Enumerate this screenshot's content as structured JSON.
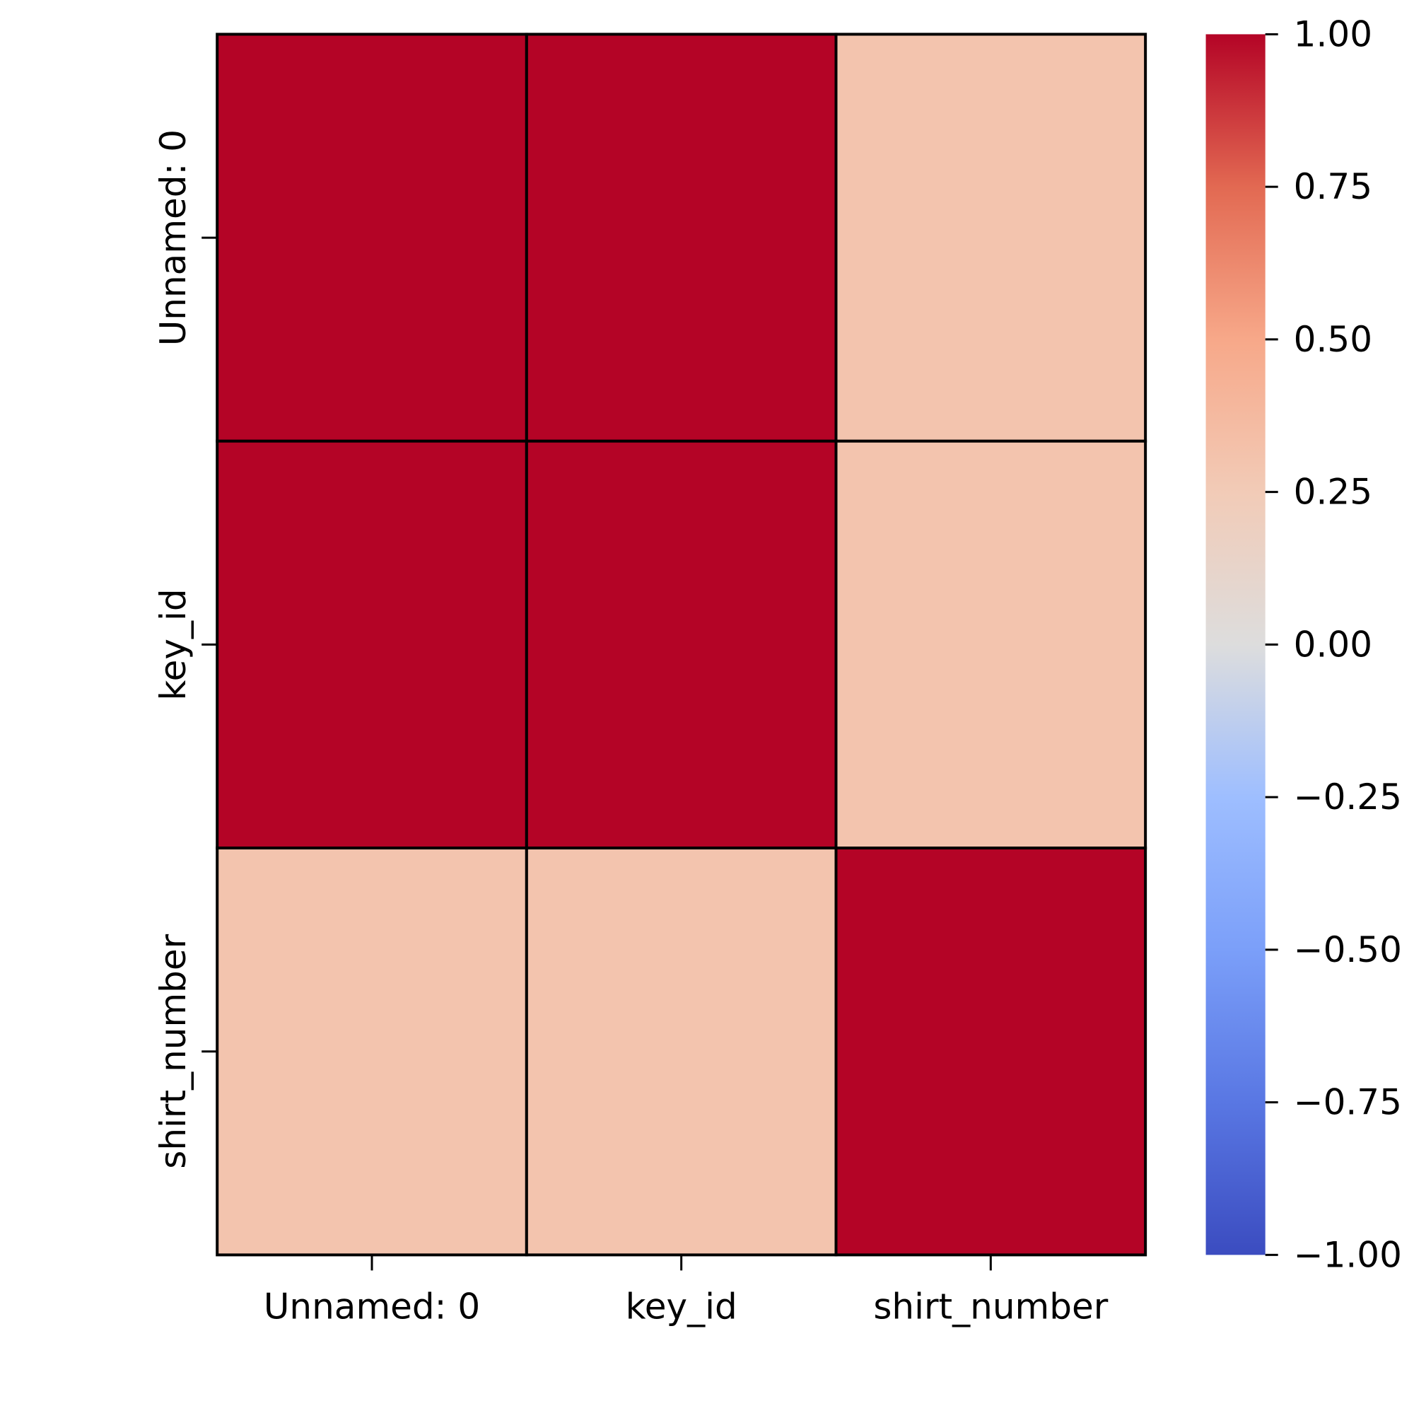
{
  "chart_data": {
    "type": "heatmap",
    "title": "",
    "xlabel": "",
    "ylabel": "",
    "x_categories": [
      "Unnamed: 0",
      "key_id",
      "shirt_number"
    ],
    "y_categories": [
      "Unnamed: 0",
      "key_id",
      "shirt_number"
    ],
    "values": [
      [
        1.0,
        1.0,
        0.3
      ],
      [
        1.0,
        1.0,
        0.3
      ],
      [
        0.3,
        0.3,
        1.0
      ]
    ],
    "colorbar": {
      "colormap": "coolwarm",
      "range": [
        -1.0,
        1.0
      ],
      "ticks": [
        1.0,
        0.75,
        0.5,
        0.25,
        0.0,
        -0.25,
        -0.5,
        -0.75,
        -1.0
      ],
      "tick_labels": [
        "1.00",
        "0.75",
        "0.50",
        "0.25",
        "0.00",
        "−0.25",
        "−0.50",
        "−0.75",
        "−1.00"
      ],
      "placement": "right"
    },
    "cell_border_color": "#000000",
    "grid": false
  }
}
